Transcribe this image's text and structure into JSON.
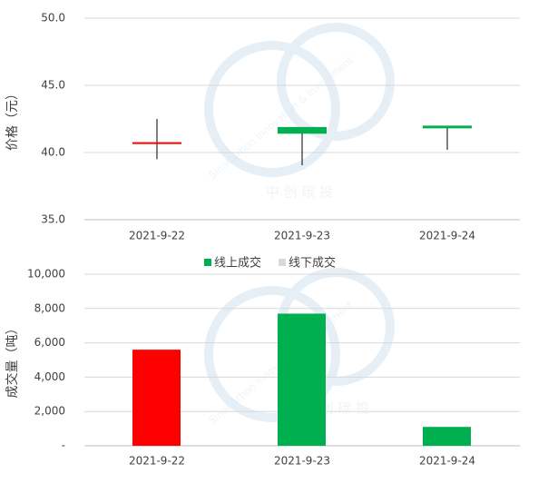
{
  "chart_data": [
    {
      "type": "candlestick",
      "y_label": "价格（元）",
      "categories": [
        "2021-9-22",
        "2021-9-23",
        "2021-9-24"
      ],
      "open": [
        40.7,
        41.9,
        42.0
      ],
      "high": [
        42.5,
        41.9,
        42.0
      ],
      "low": [
        39.5,
        39.05,
        40.2
      ],
      "close": [
        40.7,
        41.4,
        41.8
      ],
      "colors": [
        "#ff0000",
        "#00b050",
        "#00b050"
      ],
      "ylim": [
        35,
        50
      ],
      "yticks": [
        {
          "value": 35,
          "label": "35.0"
        },
        {
          "value": 40,
          "label": "40.0"
        },
        {
          "value": 45,
          "label": "45.0"
        },
        {
          "value": 50,
          "label": "50.0"
        }
      ],
      "grid": true
    },
    {
      "type": "bar",
      "y_label": "成交量（吨）",
      "categories": [
        "2021-9-22",
        "2021-9-23",
        "2021-9-24"
      ],
      "series": [
        {
          "name": "线上成交",
          "color": "#00b050",
          "point_colors": [
            "#ff0000",
            "#00b050",
            "#00b050"
          ],
          "values": [
            5600,
            7700,
            1100
          ]
        },
        {
          "name": "线下成交",
          "color": "#d9d9d9",
          "values": [
            null,
            null,
            null
          ]
        }
      ],
      "legend": "top",
      "ylim": [
        0,
        10000
      ],
      "yticks": [
        {
          "value": 0,
          "label": "-"
        },
        {
          "value": 2000,
          "label": "2,000"
        },
        {
          "value": 4000,
          "label": "4,000"
        },
        {
          "value": 6000,
          "label": "6,000"
        },
        {
          "value": 8000,
          "label": "8,000"
        },
        {
          "value": 10000,
          "label": "10,000"
        }
      ],
      "grid": true
    }
  ],
  "watermark": {
    "english": "SinoCarbon Innovation & Investment",
    "chinese": "中 创 碳 投"
  }
}
